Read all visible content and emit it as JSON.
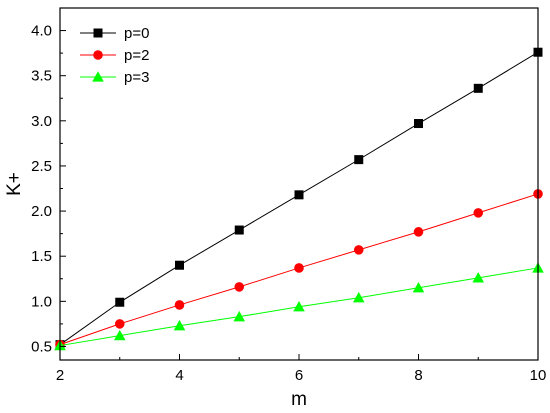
{
  "chart_data": {
    "type": "line",
    "xlabel": "m",
    "ylabel": "K+",
    "xlim": [
      2,
      10
    ],
    "ylim": [
      0.35,
      4.25
    ],
    "xticks": [
      "2",
      "4",
      "6",
      "8",
      "10"
    ],
    "yticks": [
      "0.5",
      "1.0",
      "1.5",
      "2.0",
      "2.5",
      "3.0",
      "3.5",
      "4.0"
    ],
    "x": [
      2,
      3,
      4,
      5,
      6,
      7,
      8,
      9,
      10
    ],
    "legend_position": "top-left",
    "series": [
      {
        "name": "p=0",
        "marker": "square",
        "color": "#000000",
        "values": [
          0.52,
          0.99,
          1.4,
          1.79,
          2.18,
          2.57,
          2.97,
          3.36,
          3.76
        ]
      },
      {
        "name": "p=2",
        "marker": "circle",
        "color": "#ff0000",
        "values": [
          0.52,
          0.75,
          0.96,
          1.16,
          1.37,
          1.57,
          1.77,
          1.98,
          2.19
        ]
      },
      {
        "name": "p=3",
        "marker": "triangle",
        "color": "#00ff00",
        "values": [
          0.51,
          0.62,
          0.73,
          0.83,
          0.94,
          1.04,
          1.15,
          1.26,
          1.37
        ]
      }
    ]
  }
}
